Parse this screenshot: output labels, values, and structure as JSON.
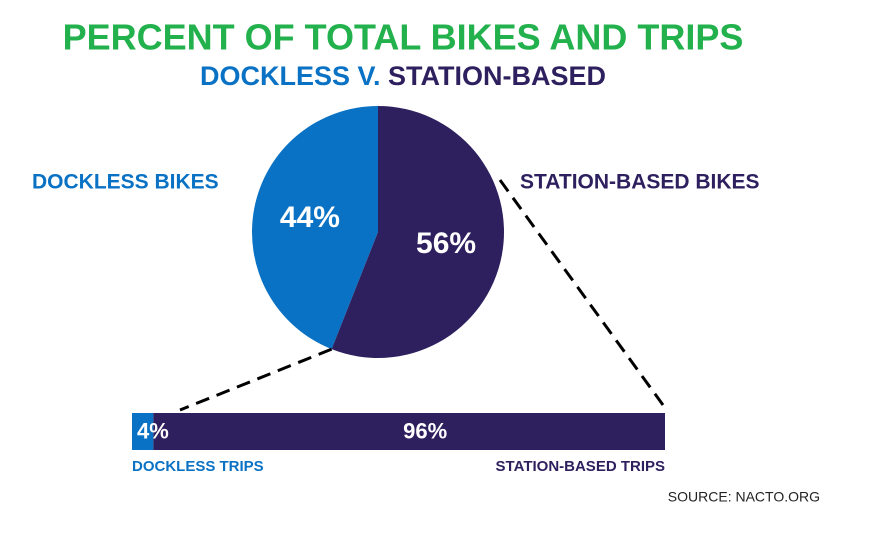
{
  "chart_data": [
    {
      "type": "pie",
      "title": "PERCENT OF TOTAL BIKES AND TRIPS",
      "title_color": "#22b14c",
      "subtitle": [
        "DOCKLESS V.",
        "STATION-BASED"
      ],
      "categories": [
        "DOCKLESS BIKES",
        "STATION-BASED BIKES"
      ],
      "values": [
        44,
        56
      ],
      "value_labels": [
        "44%",
        "56%"
      ],
      "colors": [
        "#0a72c4",
        "#2e1f5e"
      ]
    },
    {
      "type": "stacked-bar",
      "categories": [
        "DOCKLESS TRIPS",
        "STATION-BASED TRIPS"
      ],
      "values": [
        4,
        96
      ],
      "value_labels": [
        "4%",
        "96%"
      ],
      "colors": [
        "#0a72c4",
        "#2e1f5e"
      ],
      "source": "SOURCE: NACTO.ORG"
    }
  ]
}
